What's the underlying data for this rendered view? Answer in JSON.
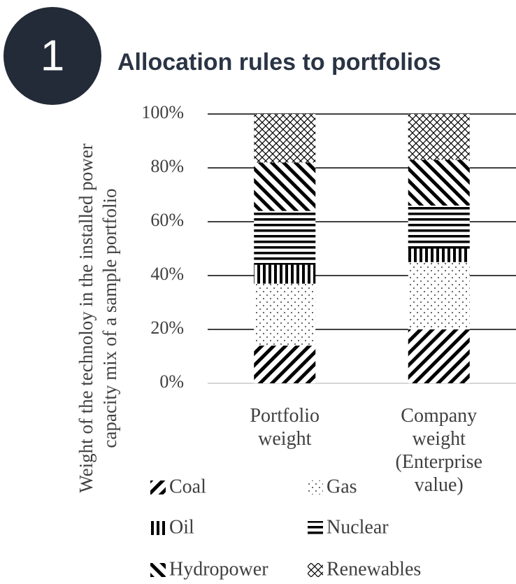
{
  "badge": "1",
  "chart_data": {
    "type": "stacked_bar",
    "title": "Allocation rules to portfolios",
    "y_label": "Weight of the technoloy in the installed power capacity mix of a sample portfolio",
    "categories": [
      "Portfolio weight",
      "Company weight (Enterprise value)"
    ],
    "series": [
      {
        "name": "Coal",
        "color": "#000000",
        "pattern": "diagonal",
        "values": [
          14,
          20
        ]
      },
      {
        "name": "Gas",
        "color": "#000000",
        "pattern": "dots",
        "values": [
          23,
          25
        ]
      },
      {
        "name": "Oil",
        "color": "#000000",
        "pattern": "vertical",
        "values": [
          7,
          5
        ]
      },
      {
        "name": "Nuclear",
        "color": "#000000",
        "pattern": "horizontal",
        "values": [
          20,
          16
        ]
      },
      {
        "name": "Hydropower",
        "color": "#000000",
        "pattern": "backdiagonal",
        "values": [
          18,
          17
        ]
      },
      {
        "name": "Renewables",
        "color": "#000000",
        "pattern": "crosshatch",
        "values": [
          18,
          17
        ]
      }
    ],
    "ylim": [
      0,
      100
    ],
    "yticks": [
      {
        "value": 0,
        "label": "0%"
      },
      {
        "value": 20,
        "label": "20%"
      },
      {
        "value": 40,
        "label": "40%"
      },
      {
        "value": 60,
        "label": "60%"
      },
      {
        "value": 80,
        "label": "80%"
      },
      {
        "value": 100,
        "label": "100%"
      }
    ],
    "grid": true,
    "legend": "bottom"
  }
}
